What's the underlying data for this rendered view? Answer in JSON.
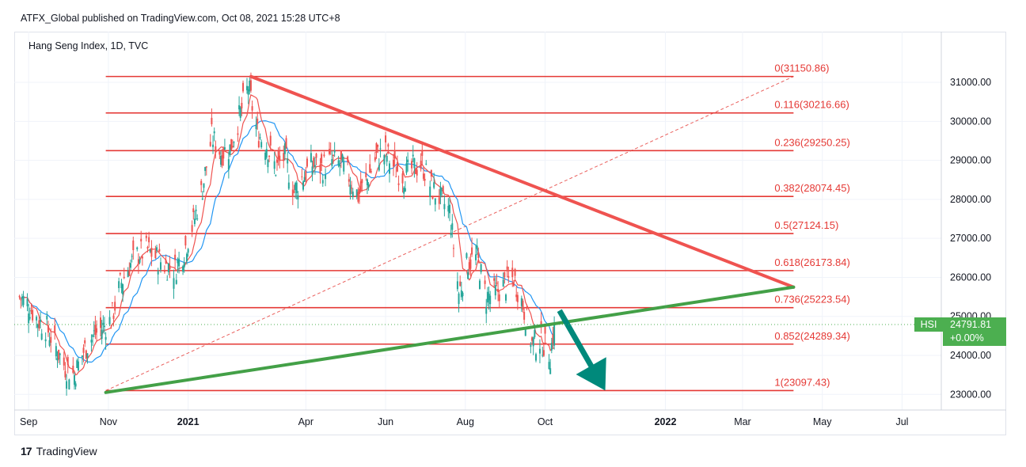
{
  "header": {
    "published_text": "ATFX_Global published on TradingView.com, Oct 08, 2021 15:28 UTC+8"
  },
  "footer": {
    "brand": "TradingView",
    "logo_glyph": "17"
  },
  "colors": {
    "up_candle": "#26a69a",
    "down_candle": "#ef5350",
    "fib_line": "#e53935",
    "resistance_line": "#ef5350",
    "support_line": "#43a047",
    "ma_fast": "#ef5350",
    "ma_slow": "#2196f3",
    "arrow": "#00897b",
    "badge": "#4caf50"
  },
  "chart_data": {
    "type": "candlestick",
    "title": "Hang Seng Index, 1D, TVC",
    "ylim": [
      22600,
      32300
    ],
    "y_ticks": [
      "23000.00",
      "24000.00",
      "25000.00",
      "26000.00",
      "27000.00",
      "28000.00",
      "29000.00",
      "30000.00",
      "31000.00"
    ],
    "x_ticks": [
      {
        "label": "Sep",
        "date": "2020-09-01",
        "bold": false
      },
      {
        "label": "Nov",
        "date": "2020-11-01",
        "bold": false
      },
      {
        "label": "2021",
        "date": "2021-01-01",
        "bold": true
      },
      {
        "label": "Apr",
        "date": "2021-04-01",
        "bold": false
      },
      {
        "label": "Jun",
        "date": "2021-06-01",
        "bold": false
      },
      {
        "label": "Aug",
        "date": "2021-08-01",
        "bold": false
      },
      {
        "label": "Oct",
        "date": "2021-10-01",
        "bold": false
      },
      {
        "label": "2022",
        "date": "2022-01-01",
        "bold": true
      },
      {
        "label": "Mar",
        "date": "2022-03-01",
        "bold": false
      },
      {
        "label": "May",
        "date": "2022-05-01",
        "bold": false
      },
      {
        "label": "Jul",
        "date": "2022-07-01",
        "bold": false
      }
    ],
    "x_range": [
      "2020-08-21",
      "2022-07-31"
    ],
    "last_price": {
      "symbol": "HSI",
      "price": "24791.81",
      "change": "+0.00%",
      "value": 24791.81
    },
    "fib_levels": [
      {
        "ratio": "0",
        "price": 31150.86,
        "label": "0(31150.86)"
      },
      {
        "ratio": "0.116",
        "price": 30216.66,
        "label": "0.116(30216.66)"
      },
      {
        "ratio": "0.236",
        "price": 29250.25,
        "label": "0.236(29250.25)"
      },
      {
        "ratio": "0.382",
        "price": 28074.45,
        "label": "0.382(28074.45)"
      },
      {
        "ratio": "0.5",
        "price": 27124.15,
        "label": "0.5(27124.15)"
      },
      {
        "ratio": "0.618",
        "price": 26173.84,
        "label": "0.618(26173.84)"
      },
      {
        "ratio": "0.736",
        "price": 25223.54,
        "label": "0.736(25223.54)"
      },
      {
        "ratio": "0.852",
        "price": 24289.34,
        "label": "0.852(24289.34)"
      },
      {
        "ratio": "1",
        "price": 23097.43,
        "label": "1(23097.43)"
      }
    ],
    "fib_range_dates": [
      "2020-10-30",
      "2022-04-09"
    ],
    "trendlines": [
      {
        "name": "resistance",
        "from": {
          "date": "2021-02-18",
          "price": 31150
        },
        "to": {
          "date": "2022-04-09",
          "price": 25750
        }
      },
      {
        "name": "support",
        "from": {
          "date": "2020-10-30",
          "price": 23050
        },
        "to": {
          "date": "2022-04-09",
          "price": 25750
        }
      },
      {
        "name": "fib-diagonal",
        "from": {
          "date": "2020-10-30",
          "price": 23097.43
        },
        "to": {
          "date": "2022-04-09",
          "price": 31150.86
        }
      }
    ],
    "arrow": {
      "from": {
        "date": "2021-10-12",
        "price": 25150
      },
      "to": {
        "date": "2021-11-16",
        "price": 23100
      }
    },
    "price_path": [
      {
        "date": "2020-08-25",
        "close": 25500
      },
      {
        "date": "2020-09-01",
        "close": 25300
      },
      {
        "date": "2020-09-08",
        "close": 24900
      },
      {
        "date": "2020-09-15",
        "close": 24700
      },
      {
        "date": "2020-09-22",
        "close": 24200
      },
      {
        "date": "2020-09-29",
        "close": 23700
      },
      {
        "date": "2020-10-06",
        "close": 23500
      },
      {
        "date": "2020-10-13",
        "close": 24100
      },
      {
        "date": "2020-10-20",
        "close": 24500
      },
      {
        "date": "2020-10-27",
        "close": 24700
      },
      {
        "date": "2020-11-03",
        "close": 24900
      },
      {
        "date": "2020-11-10",
        "close": 25800
      },
      {
        "date": "2020-11-17",
        "close": 26300
      },
      {
        "date": "2020-11-24",
        "close": 26600
      },
      {
        "date": "2020-12-01",
        "close": 26700
      },
      {
        "date": "2020-12-08",
        "close": 26500
      },
      {
        "date": "2020-12-15",
        "close": 26300
      },
      {
        "date": "2020-12-22",
        "close": 26200
      },
      {
        "date": "2020-12-29",
        "close": 26700
      },
      {
        "date": "2021-01-05",
        "close": 27400
      },
      {
        "date": "2021-01-12",
        "close": 28300
      },
      {
        "date": "2021-01-19",
        "close": 29600
      },
      {
        "date": "2021-01-26",
        "close": 29200
      },
      {
        "date": "2021-02-02",
        "close": 29300
      },
      {
        "date": "2021-02-09",
        "close": 30100
      },
      {
        "date": "2021-02-16",
        "close": 30900
      },
      {
        "date": "2021-02-23",
        "close": 29700
      },
      {
        "date": "2021-03-02",
        "close": 29400
      },
      {
        "date": "2021-03-09",
        "close": 28800
      },
      {
        "date": "2021-03-16",
        "close": 29100
      },
      {
        "date": "2021-03-23",
        "close": 28200
      },
      {
        "date": "2021-03-30",
        "close": 28600
      },
      {
        "date": "2021-04-06",
        "close": 28900
      },
      {
        "date": "2021-04-13",
        "close": 28800
      },
      {
        "date": "2021-04-20",
        "close": 29000
      },
      {
        "date": "2021-04-27",
        "close": 28900
      },
      {
        "date": "2021-05-04",
        "close": 28600
      },
      {
        "date": "2021-05-11",
        "close": 28100
      },
      {
        "date": "2021-05-18",
        "close": 28500
      },
      {
        "date": "2021-05-25",
        "close": 29100
      },
      {
        "date": "2021-06-01",
        "close": 29200
      },
      {
        "date": "2021-06-08",
        "close": 28800
      },
      {
        "date": "2021-06-15",
        "close": 28600
      },
      {
        "date": "2021-06-22",
        "close": 28800
      },
      {
        "date": "2021-06-29",
        "close": 28900
      },
      {
        "date": "2021-07-06",
        "close": 28300
      },
      {
        "date": "2021-07-13",
        "close": 28000
      },
      {
        "date": "2021-07-20",
        "close": 27700
      },
      {
        "date": "2021-07-27",
        "close": 25600
      },
      {
        "date": "2021-08-03",
        "close": 26400
      },
      {
        "date": "2021-08-10",
        "close": 26500
      },
      {
        "date": "2021-08-17",
        "close": 25500
      },
      {
        "date": "2021-08-24",
        "close": 25600
      },
      {
        "date": "2021-08-31",
        "close": 25800
      },
      {
        "date": "2021-09-07",
        "close": 26000
      },
      {
        "date": "2021-09-14",
        "close": 25300
      },
      {
        "date": "2021-09-21",
        "close": 24300
      },
      {
        "date": "2021-09-28",
        "close": 24400
      },
      {
        "date": "2021-10-05",
        "close": 24000
      },
      {
        "date": "2021-10-08",
        "close": 24791
      }
    ]
  }
}
